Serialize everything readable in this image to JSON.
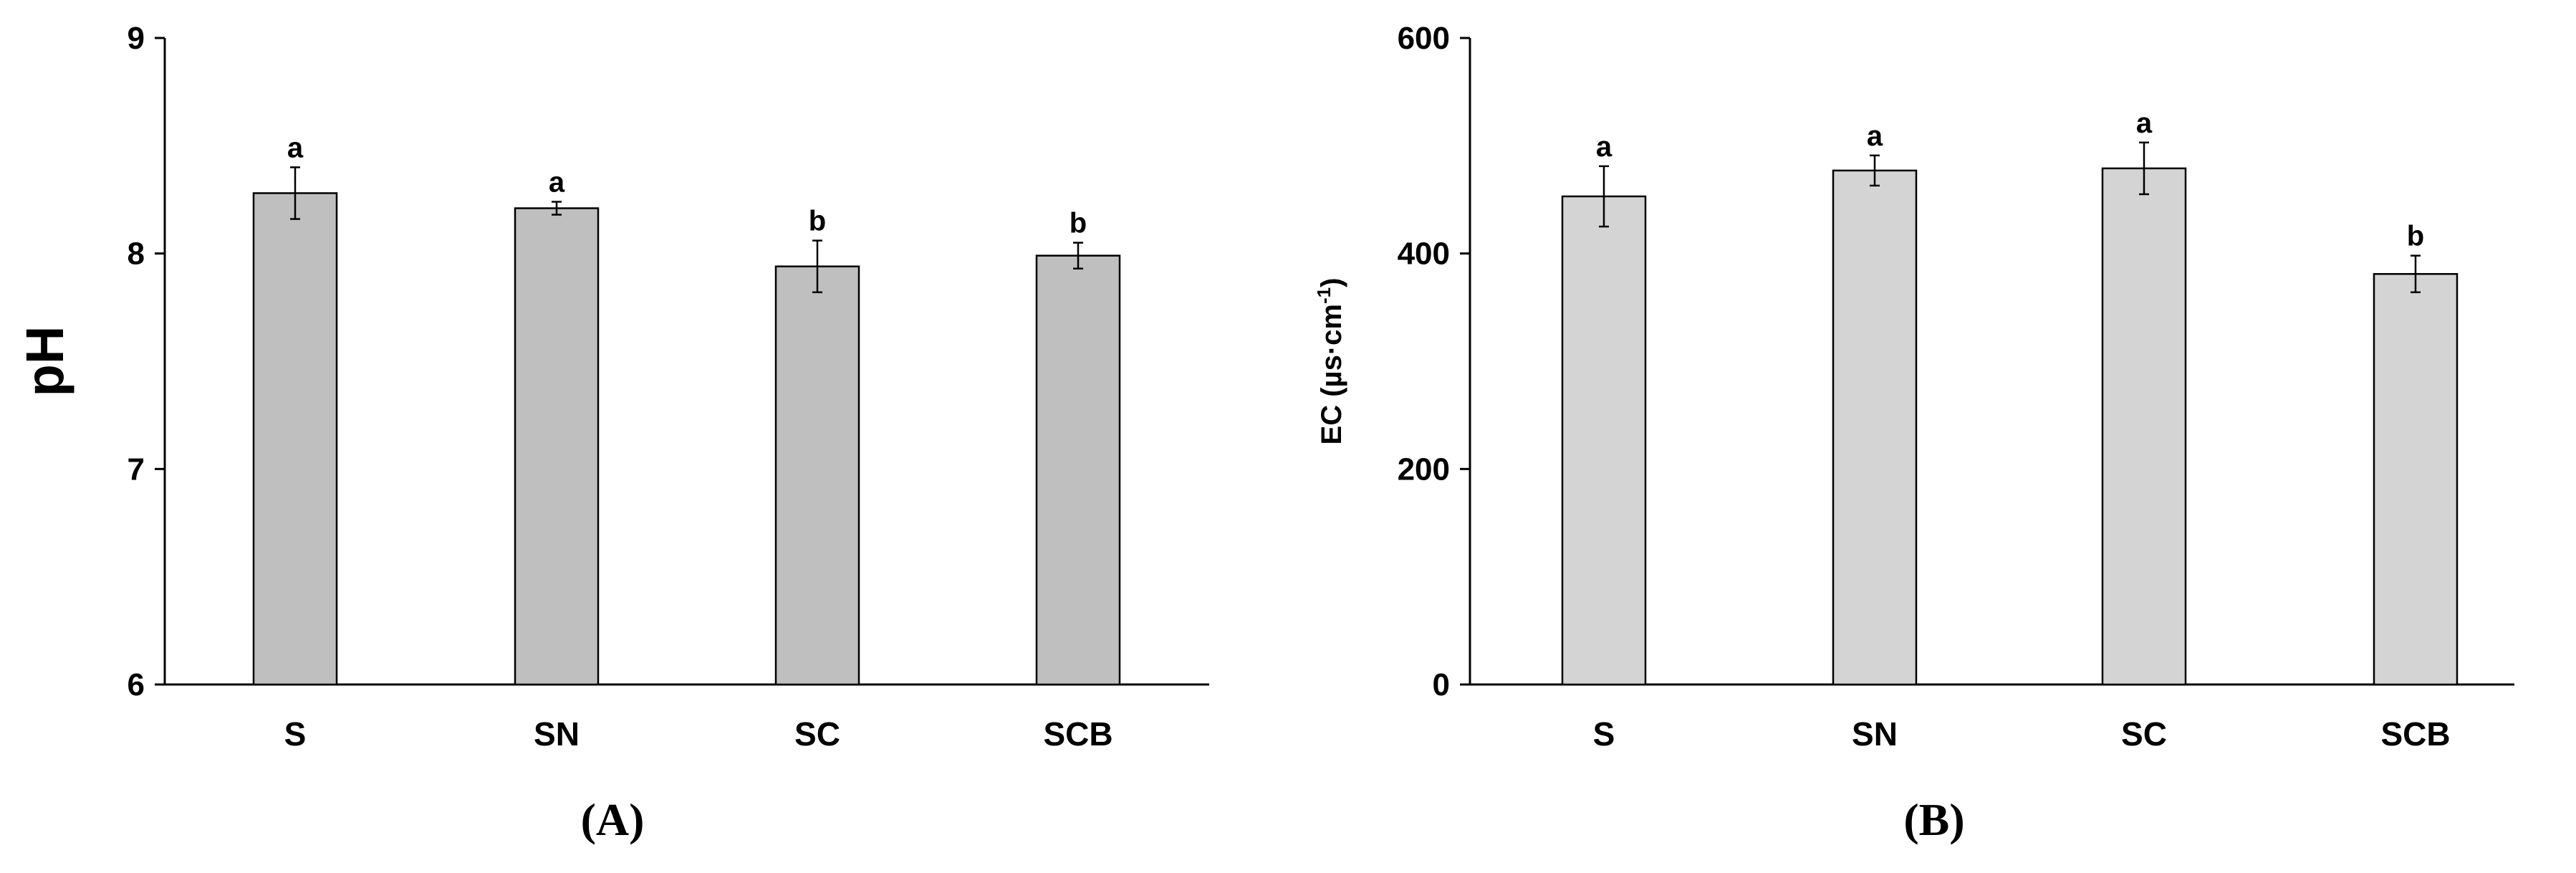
{
  "chart_data": [
    {
      "type": "bar",
      "panel_label": "(A)",
      "categories": [
        "S",
        "SN",
        "SC",
        "SCB"
      ],
      "values": [
        8.28,
        8.21,
        7.94,
        7.99
      ],
      "error": [
        0.12,
        0.03,
        0.12,
        0.06
      ],
      "significance": [
        "a",
        "a",
        "b",
        "b"
      ],
      "ylabel": "pH",
      "ylim": [
        6,
        9
      ],
      "yticks": [
        6,
        7,
        8,
        9
      ],
      "bar_color": "#bfbfbf",
      "grid": false
    },
    {
      "type": "bar",
      "panel_label": "(B)",
      "categories": [
        "S",
        "SN",
        "SC",
        "SCB"
      ],
      "values": [
        453,
        477,
        479,
        381
      ],
      "error": [
        28,
        14,
        24,
        17
      ],
      "significance": [
        "a",
        "a",
        "a",
        "b"
      ],
      "ylabel": "EC (µs·cm",
      "ylabel_superscript": "-1",
      "ylabel_suffix": ")",
      "ylim": [
        0,
        600
      ],
      "yticks": [
        0,
        200,
        400,
        600
      ],
      "bar_color": "#d4d4d4",
      "grid": false
    }
  ]
}
